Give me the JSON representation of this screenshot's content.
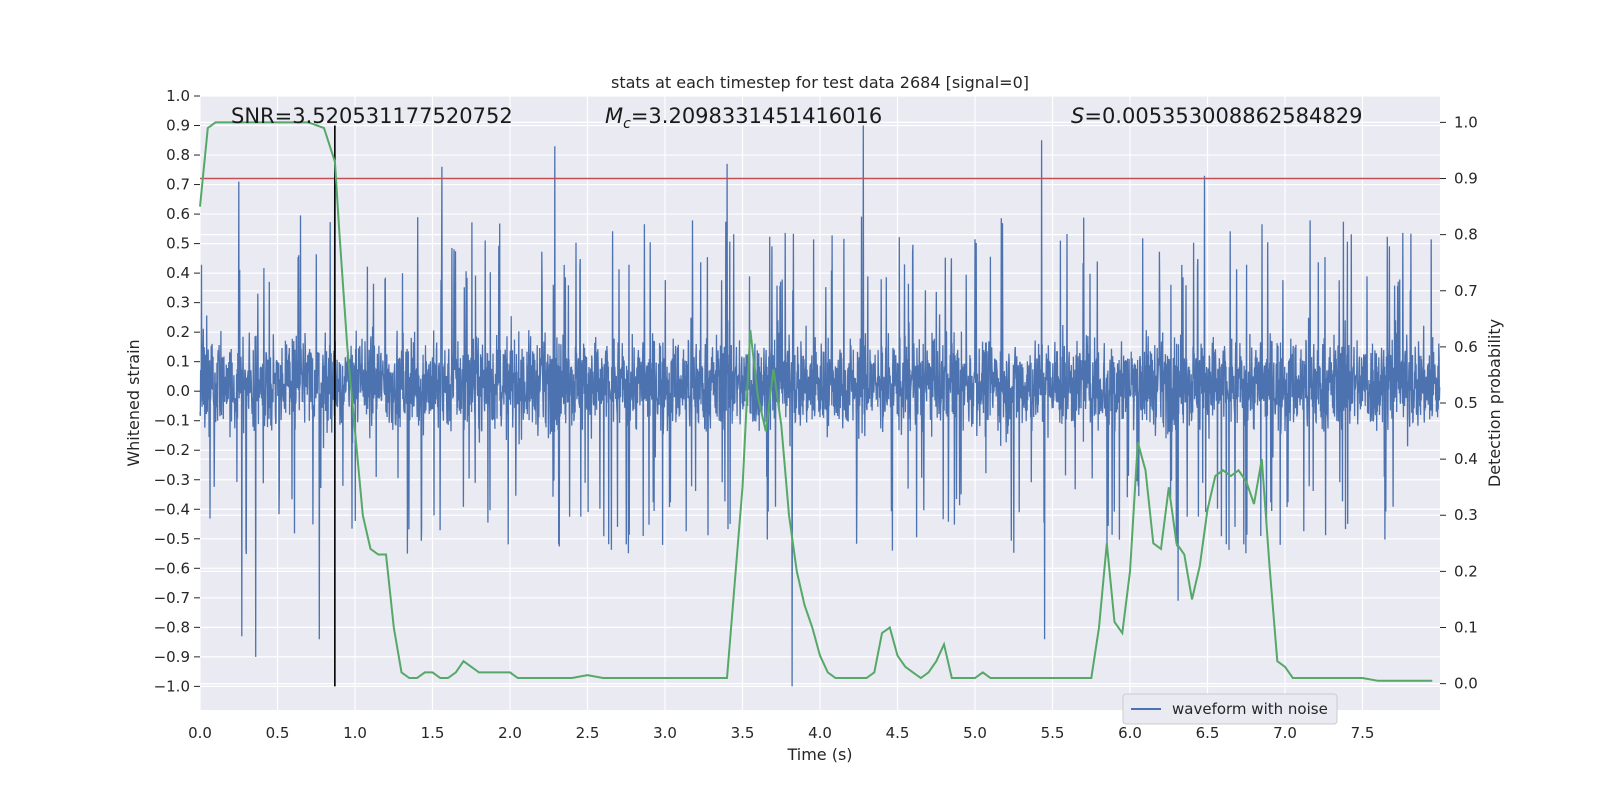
{
  "chart_data": {
    "type": "line",
    "title": "stats at each timestep for test data 2684 [signal=0]",
    "xlabel": "Time (s)",
    "ylabel_left": "Whitened strain",
    "ylabel_right": "Detection probability",
    "xlim": [
      0.0,
      8.0
    ],
    "ylim_left": [
      -1.08,
      1.0
    ],
    "ylim_right": [
      -0.047,
      1.047
    ],
    "x_ticks": [
      "0.0",
      "0.5",
      "1.0",
      "1.5",
      "2.0",
      "2.5",
      "3.0",
      "3.5",
      "4.0",
      "4.5",
      "5.0",
      "5.5",
      "6.0",
      "6.5",
      "7.0",
      "7.5"
    ],
    "y_left_ticks": [
      "1.0",
      "0.9",
      "0.8",
      "0.7",
      "0.6",
      "0.5",
      "0.4",
      "0.3",
      "0.2",
      "0.1",
      "0.0",
      "−0.1",
      "−0.2",
      "−0.3",
      "−0.4",
      "−0.5",
      "−0.6",
      "−0.7",
      "−0.8",
      "−0.9",
      "−1.0"
    ],
    "y_right_ticks": [
      "1.0",
      "0.9",
      "0.8",
      "0.7",
      "0.6",
      "0.5",
      "0.4",
      "0.3",
      "0.2",
      "0.1",
      "0.0"
    ],
    "grid": true,
    "legend_position": "lower-right",
    "annotations": {
      "snr": "SNR=3.520531177520752",
      "mc_symbol": "M",
      "mc_subscript": "c",
      "mc_value": "=3.2098331451416016",
      "s_symbol": "S",
      "s_value": "=0.005353008862584829"
    },
    "threshold": {
      "value_right_axis": 0.9,
      "color": "#c44e52"
    },
    "marker_time": 0.87,
    "series": [
      {
        "name": "waveform with noise",
        "axis": "left",
        "color": "#4c72b0",
        "kind": "noise",
        "sample_rate_approx": 512,
        "typical_band": [
          -0.25,
          0.3
        ],
        "peak_spikes": [
          {
            "x": 0.25,
            "y": 0.71
          },
          {
            "x": 0.27,
            "y": -0.83
          },
          {
            "x": 0.36,
            "y": -0.9
          },
          {
            "x": 0.77,
            "y": -0.84
          },
          {
            "x": 0.87,
            "y": 0.78
          },
          {
            "x": 1.56,
            "y": 0.76
          },
          {
            "x": 2.29,
            "y": 0.83
          },
          {
            "x": 3.4,
            "y": 0.77
          },
          {
            "x": 3.82,
            "y": -1.0
          },
          {
            "x": 4.28,
            "y": 0.9
          },
          {
            "x": 5.43,
            "y": 0.85
          },
          {
            "x": 5.45,
            "y": -0.84
          },
          {
            "x": 6.31,
            "y": -0.71
          },
          {
            "x": 6.48,
            "y": 0.73
          }
        ]
      },
      {
        "name": "",
        "axis": "right",
        "color": "#55a868",
        "x": [
          0.0,
          0.05,
          0.1,
          0.15,
          0.2,
          0.3,
          0.4,
          0.5,
          0.6,
          0.7,
          0.8,
          0.87,
          0.9,
          0.95,
          1.0,
          1.05,
          1.1,
          1.15,
          1.2,
          1.25,
          1.3,
          1.35,
          1.4,
          1.45,
          1.5,
          1.55,
          1.6,
          1.65,
          1.7,
          1.75,
          1.8,
          1.85,
          1.9,
          1.95,
          2.0,
          2.05,
          2.1,
          2.2,
          2.3,
          2.4,
          2.5,
          2.6,
          2.7,
          2.8,
          2.9,
          3.0,
          3.1,
          3.2,
          3.3,
          3.4,
          3.5,
          3.55,
          3.6,
          3.65,
          3.7,
          3.75,
          3.8,
          3.85,
          3.9,
          3.95,
          4.0,
          4.05,
          4.1,
          4.2,
          4.3,
          4.35,
          4.4,
          4.45,
          4.5,
          4.55,
          4.6,
          4.65,
          4.7,
          4.75,
          4.8,
          4.85,
          4.9,
          4.95,
          5.0,
          5.05,
          5.1,
          5.15,
          5.2,
          5.3,
          5.4,
          5.5,
          5.55,
          5.6,
          5.65,
          5.7,
          5.75,
          5.8,
          5.85,
          5.9,
          5.95,
          6.0,
          6.05,
          6.1,
          6.15,
          6.2,
          6.25,
          6.3,
          6.35,
          6.4,
          6.45,
          6.5,
          6.55,
          6.6,
          6.65,
          6.7,
          6.75,
          6.8,
          6.85,
          6.9,
          6.95,
          7.0,
          7.05,
          7.1,
          7.2,
          7.3,
          7.4,
          7.5,
          7.6,
          7.7,
          7.8,
          7.95
        ],
        "y": [
          0.85,
          0.99,
          1.0,
          1.0,
          1.0,
          1.0,
          1.0,
          1.0,
          1.0,
          1.0,
          0.99,
          0.93,
          0.8,
          0.6,
          0.45,
          0.3,
          0.24,
          0.23,
          0.23,
          0.1,
          0.02,
          0.01,
          0.01,
          0.02,
          0.02,
          0.01,
          0.01,
          0.02,
          0.04,
          0.03,
          0.02,
          0.02,
          0.02,
          0.02,
          0.02,
          0.01,
          0.01,
          0.01,
          0.01,
          0.01,
          0.015,
          0.01,
          0.01,
          0.01,
          0.01,
          0.01,
          0.01,
          0.01,
          0.01,
          0.01,
          0.35,
          0.63,
          0.51,
          0.45,
          0.56,
          0.46,
          0.3,
          0.2,
          0.14,
          0.1,
          0.05,
          0.02,
          0.01,
          0.01,
          0.01,
          0.02,
          0.09,
          0.1,
          0.05,
          0.03,
          0.02,
          0.01,
          0.02,
          0.04,
          0.07,
          0.01,
          0.01,
          0.01,
          0.01,
          0.02,
          0.01,
          0.01,
          0.01,
          0.01,
          0.01,
          0.01,
          0.01,
          0.01,
          0.01,
          0.01,
          0.01,
          0.1,
          0.25,
          0.11,
          0.09,
          0.2,
          0.43,
          0.38,
          0.25,
          0.24,
          0.35,
          0.25,
          0.23,
          0.15,
          0.21,
          0.31,
          0.37,
          0.38,
          0.37,
          0.38,
          0.36,
          0.32,
          0.4,
          0.21,
          0.04,
          0.03,
          0.01,
          0.01,
          0.01,
          0.01,
          0.01,
          0.01,
          0.005,
          0.005,
          0.005,
          0.005
        ]
      }
    ]
  }
}
